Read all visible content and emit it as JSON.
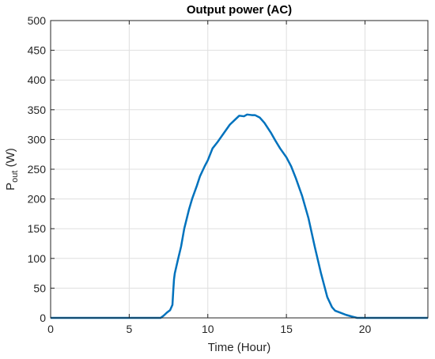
{
  "chart_data": {
    "type": "line",
    "title": "Output power (AC)",
    "xlabel": "Time (Hour)",
    "ylabel": {
      "main": "P",
      "subscript": "out",
      "unit": " (W)"
    },
    "xlim": [
      0,
      24
    ],
    "ylim": [
      0,
      500
    ],
    "xticks": [
      0,
      5,
      10,
      15,
      20
    ],
    "yticks": [
      0,
      50,
      100,
      150,
      200,
      250,
      300,
      350,
      400,
      450,
      500
    ],
    "grid": true,
    "line_color": "#0072BD",
    "series": [
      {
        "x": [
          0,
          7.0,
          7.2,
          7.4,
          7.6,
          7.75,
          7.8,
          7.85,
          7.9,
          8.1,
          8.3,
          8.5,
          8.8,
          9.0,
          9.3,
          9.5,
          9.8,
          10.0,
          10.3,
          10.6,
          11.0,
          11.4,
          11.8,
          12.0,
          12.3,
          12.5,
          12.8,
          13.0,
          13.3,
          13.6,
          14.0,
          14.3,
          14.6,
          15.0,
          15.3,
          15.6,
          16.0,
          16.4,
          16.8,
          17.2,
          17.6,
          17.9,
          18.1,
          18.4,
          18.8,
          19.2,
          19.5,
          19.7,
          24
        ],
        "y": [
          0,
          0,
          4,
          9,
          13,
          22,
          45,
          65,
          75,
          98,
          120,
          150,
          182,
          200,
          222,
          238,
          255,
          265,
          285,
          295,
          310,
          325,
          335,
          340,
          339,
          342,
          341,
          341,
          337,
          328,
          312,
          298,
          285,
          270,
          255,
          235,
          205,
          168,
          120,
          75,
          35,
          18,
          12,
          9,
          5,
          2,
          0,
          0,
          0
        ]
      }
    ]
  }
}
